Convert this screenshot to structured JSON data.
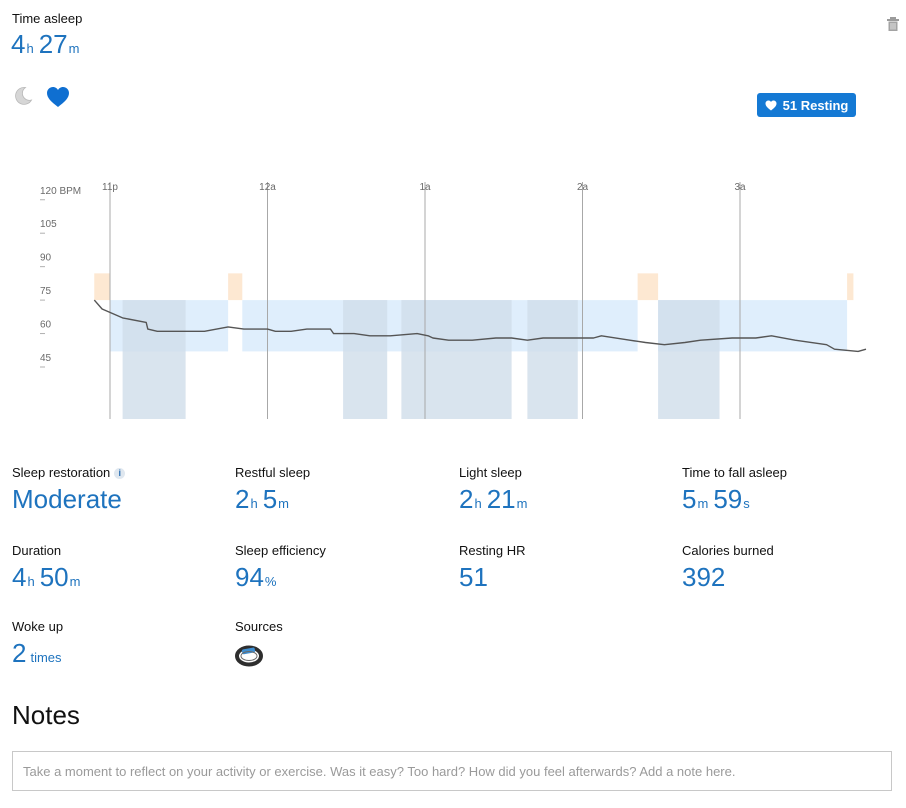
{
  "header": {
    "label": "Time asleep",
    "hours": "4",
    "hours_unit": "h",
    "minutes": "27",
    "minutes_unit": "m"
  },
  "tabs": [
    {
      "name": "sleep",
      "icon": "moon-icon",
      "selected": false
    },
    {
      "name": "heart-rate",
      "icon": "heart-icon",
      "selected": true
    }
  ],
  "badge": {
    "label": "51 Resting",
    "icon": "heart-icon"
  },
  "chart_data": {
    "type": "line",
    "x_ticks": [
      "11p",
      "12a",
      "1a",
      "2a",
      "3a"
    ],
    "y_ticks": [
      "120 BPM",
      "105",
      "90",
      "75",
      "60",
      "45"
    ],
    "y_tick_values": [
      120,
      105,
      90,
      75,
      60,
      45
    ],
    "ylim": [
      45,
      120
    ],
    "series": [
      {
        "values": [
          [
            -0.1,
            75
          ],
          [
            -0.05,
            71
          ],
          [
            0.08,
            67
          ],
          [
            0.23,
            65
          ],
          [
            0.24,
            62
          ],
          [
            0.3,
            61
          ],
          [
            0.43,
            61
          ],
          [
            0.6,
            61
          ],
          [
            0.75,
            63
          ],
          [
            0.85,
            62
          ],
          [
            1.0,
            62
          ],
          [
            1.05,
            61
          ],
          [
            1.15,
            61
          ],
          [
            1.25,
            62
          ],
          [
            1.4,
            62
          ],
          [
            1.42,
            60
          ],
          [
            1.55,
            60
          ],
          [
            1.65,
            59
          ],
          [
            1.78,
            59
          ],
          [
            1.95,
            60
          ],
          [
            2.02,
            59
          ],
          [
            2.05,
            58
          ],
          [
            2.15,
            57
          ],
          [
            2.3,
            57
          ],
          [
            2.45,
            58
          ],
          [
            2.55,
            58
          ],
          [
            2.65,
            57
          ],
          [
            2.75,
            58
          ],
          [
            2.9,
            58
          ],
          [
            3.07,
            58
          ],
          [
            3.12,
            59
          ],
          [
            3.3,
            57
          ],
          [
            3.4,
            56
          ],
          [
            3.52,
            55
          ],
          [
            3.65,
            56
          ],
          [
            3.75,
            57
          ],
          [
            3.95,
            58
          ],
          [
            4.1,
            58
          ],
          [
            4.2,
            59
          ],
          [
            4.35,
            57
          ],
          [
            4.55,
            55
          ],
          [
            4.6,
            53
          ],
          [
            4.75,
            52
          ],
          [
            4.8,
            53
          ]
        ]
      }
    ],
    "sleep_stages": [
      {
        "stage": "awake",
        "start": -0.1,
        "end": 0.0
      },
      {
        "stage": "light",
        "start": 0.0,
        "end": 0.75
      },
      {
        "stage": "awake",
        "start": 0.75,
        "end": 0.84
      },
      {
        "stage": "light",
        "start": 0.84,
        "end": 3.35
      },
      {
        "stage": "awake",
        "start": 3.35,
        "end": 3.48
      },
      {
        "stage": "light",
        "start": 3.48,
        "end": 4.68
      },
      {
        "stage": "awake",
        "start": 4.68,
        "end": 4.72
      }
    ],
    "restful_periods": [
      {
        "start": 0.08,
        "end": 0.48
      },
      {
        "start": 1.48,
        "end": 1.76
      },
      {
        "start": 1.85,
        "end": 2.55
      },
      {
        "start": 2.65,
        "end": 2.97
      },
      {
        "start": 3.48,
        "end": 3.87
      }
    ],
    "colors": {
      "awake": "#fde8d2",
      "light": "#dfeefc",
      "restful": "#cfddea",
      "line": "#555555",
      "grid": "#a8a8a8"
    }
  },
  "stats": {
    "sleep_restoration": {
      "label": "Sleep restoration",
      "value": "Moderate",
      "info": "i"
    },
    "restful_sleep": {
      "label": "Restful sleep",
      "hours": "2",
      "hours_unit": "h",
      "minutes": "5",
      "minutes_unit": "m"
    },
    "light_sleep": {
      "label": "Light sleep",
      "hours": "2",
      "hours_unit": "h",
      "minutes": "21",
      "minutes_unit": "m"
    },
    "time_to_fall_asleep": {
      "label": "Time to fall asleep",
      "minutes": "5",
      "minutes_unit": "m",
      "seconds": "59",
      "seconds_unit": "s"
    },
    "duration": {
      "label": "Duration",
      "hours": "4",
      "hours_unit": "h",
      "minutes": "50",
      "minutes_unit": "m"
    },
    "sleep_efficiency": {
      "label": "Sleep efficiency",
      "value": "94",
      "unit": "%"
    },
    "resting_hr": {
      "label": "Resting HR",
      "value": "51"
    },
    "calories_burned": {
      "label": "Calories burned",
      "value": "392"
    },
    "woke_up": {
      "label": "Woke up",
      "value": "2",
      "unit": "times"
    },
    "sources": {
      "label": "Sources",
      "icon": "fitness-band-icon"
    }
  },
  "notes": {
    "heading": "Notes",
    "placeholder": "Take a moment to reflect on your activity or exercise. Was it easy? Too hard? How did you feel afterwards? Add a note here.",
    "value": ""
  }
}
